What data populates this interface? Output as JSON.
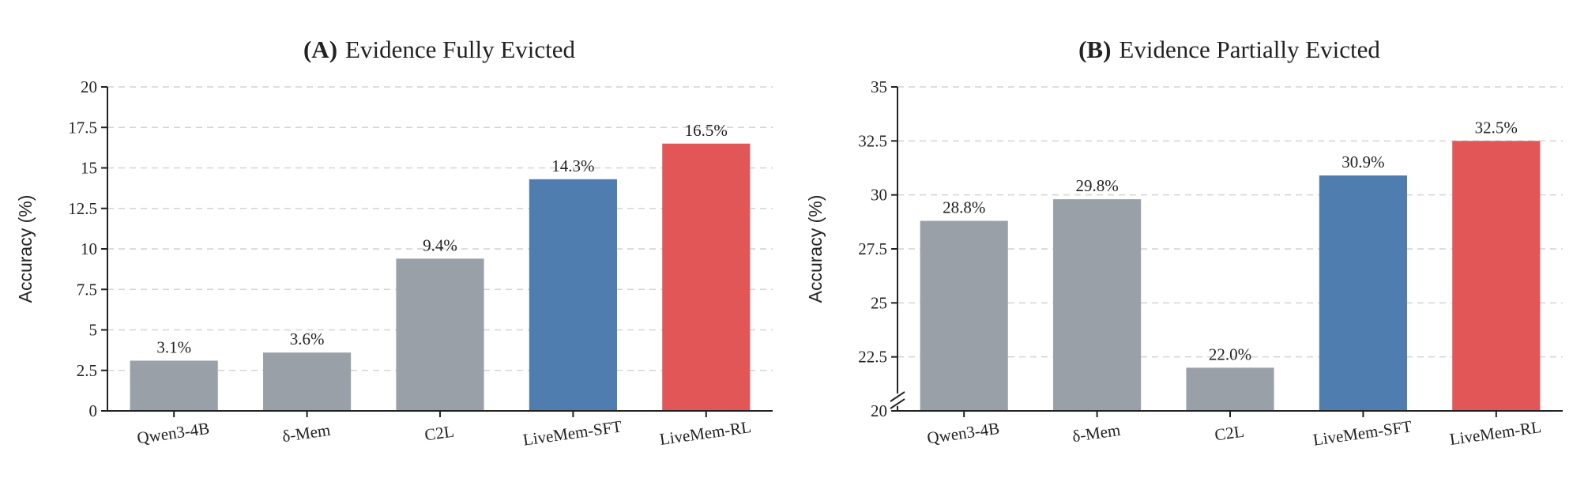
{
  "chart_data": [
    {
      "type": "bar",
      "title_prefix": "(A)",
      "title": "Evidence Fully Evicted",
      "ylabel": "Accuracy (%)",
      "xlabel": "",
      "categories": [
        "Qwen3-4B",
        "δ-Mem",
        "C2L",
        "LiveMem-SFT",
        "LiveMem-RL"
      ],
      "values": [
        3.1,
        3.6,
        9.4,
        14.3,
        16.5
      ],
      "value_labels": [
        "3.1%",
        "3.6%",
        "9.4%",
        "14.3%",
        "16.5%"
      ],
      "bar_colors": [
        "#9aa0a8",
        "#9aa0a8",
        "#9aa0a8",
        "#4f7db0",
        "#e35657"
      ],
      "ylim": [
        0,
        20
      ],
      "yticks": [
        0,
        2.5,
        5,
        7.5,
        10,
        12.5,
        15,
        17.5,
        20
      ],
      "ytick_labels": [
        "0",
        "2.5",
        "5",
        "7.5",
        "10",
        "12.5",
        "15",
        "17.5",
        "20"
      ],
      "grid": true,
      "axis_break": false
    },
    {
      "type": "bar",
      "title_prefix": "(B)",
      "title": "Evidence Partially Evicted",
      "ylabel": "Accuracy (%)",
      "xlabel": "",
      "categories": [
        "Qwen3-4B",
        "δ-Mem",
        "C2L",
        "LiveMem-SFT",
        "LiveMem-RL"
      ],
      "values": [
        28.8,
        29.8,
        22.0,
        30.9,
        32.5
      ],
      "value_labels": [
        "28.8%",
        "29.8%",
        "22.0%",
        "30.9%",
        "32.5%"
      ],
      "bar_colors": [
        "#9aa0a8",
        "#9aa0a8",
        "#9aa0a8",
        "#4f7db0",
        "#e35657"
      ],
      "ylim": [
        20,
        35
      ],
      "yticks": [
        20,
        22.5,
        25,
        27.5,
        30,
        32.5,
        35
      ],
      "ytick_labels": [
        "20",
        "22.5",
        "25",
        "27.5",
        "30",
        "32.5",
        "35"
      ],
      "grid": true,
      "axis_break": true
    }
  ]
}
